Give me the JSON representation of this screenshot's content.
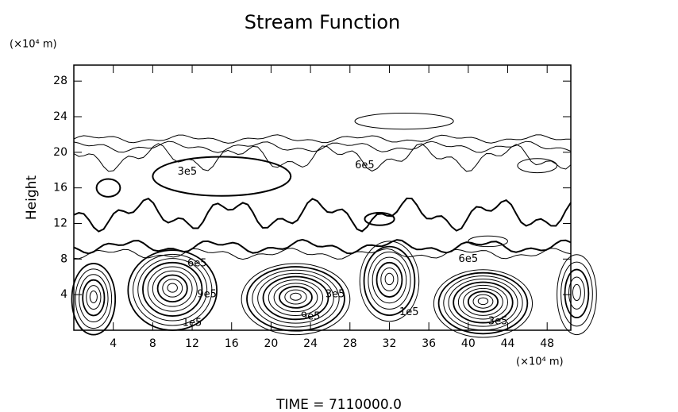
{
  "chart_data": {
    "type": "contour",
    "title": "Stream Function",
    "y_unit": "(×10⁴ m)",
    "x_unit": "(×10⁴ m)",
    "ylabel": "Height",
    "footer": "TIME = 7110000.0",
    "xlim": [
      0,
      50.4
    ],
    "ylim": [
      0,
      29.8
    ],
    "xticks": [
      4,
      8,
      12,
      16,
      20,
      24,
      28,
      32,
      36,
      40,
      44,
      48
    ],
    "yticks": [
      4,
      8,
      12,
      16,
      20,
      24,
      28
    ],
    "annotations": [
      "3e5",
      "6e5",
      "6e5",
      "9e5",
      "1e5",
      "3e5",
      "9e5",
      "1e5",
      "6e5",
      "3e5"
    ],
    "color": "#000000"
  }
}
